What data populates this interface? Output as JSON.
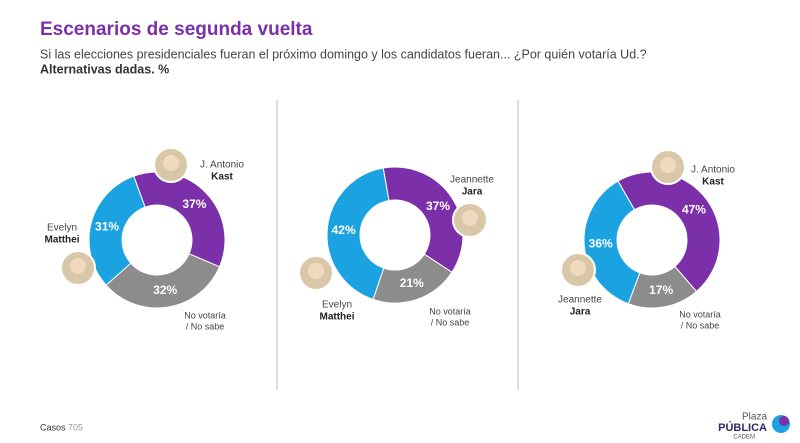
{
  "header": {
    "title": "Escenarios de segunda vuelta",
    "subtitle": "Si las elecciones presidenciales fueran el próximo domingo y los candidatos fueran... ¿Por quién votaría Ud.?",
    "note": "Alternativas dadas. %"
  },
  "chart_data": [
    {
      "type": "pie",
      "categories": [
        [
          "J. Antonio",
          "Kast"
        ],
        [
          "No votaría",
          "/ No sabe"
        ],
        [
          "Evelyn",
          "Matthei"
        ]
      ],
      "values": [
        37,
        32,
        31
      ],
      "value_labels": [
        "37%",
        "32%",
        "31%"
      ],
      "colors": [
        "#7b2fa8",
        "#8c8c8c",
        "#1aa3e0"
      ]
    },
    {
      "type": "pie",
      "categories": [
        [
          "Jeannette",
          "Jara"
        ],
        [
          "No votaría",
          "/ No sabe"
        ],
        [
          "Evelyn",
          "Matthei"
        ]
      ],
      "values": [
        37,
        21,
        42
      ],
      "value_labels": [
        "37%",
        "21%",
        "42%"
      ],
      "colors": [
        "#7b2fa8",
        "#8c8c8c",
        "#1aa3e0"
      ]
    },
    {
      "type": "pie",
      "categories": [
        [
          "J. Antonio",
          "Kast"
        ],
        [
          "No votaría",
          "/ No sabe"
        ],
        [
          "Jeannette",
          "Jara"
        ]
      ],
      "values": [
        47,
        17,
        36
      ],
      "value_labels": [
        "47%",
        "17%",
        "36%"
      ],
      "colors": [
        "#7b2fa8",
        "#8c8c8c",
        "#1aa3e0"
      ]
    }
  ],
  "footer": {
    "label": "Casos",
    "n": 705,
    "brand_top": "Plaza",
    "brand": "PÚBLICA",
    "brand_sub": "CADEM"
  }
}
